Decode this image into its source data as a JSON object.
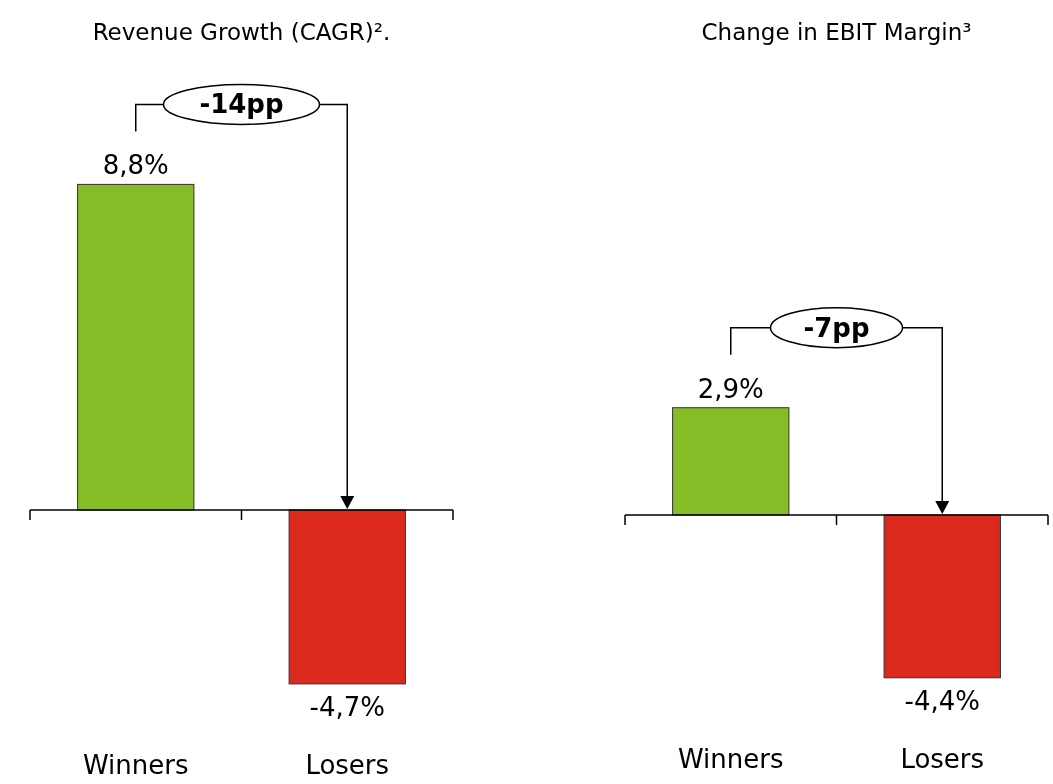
{
  "chart_data": [
    {
      "type": "bar",
      "title": "Revenue Growth (CAGR)².",
      "categories": [
        "Winners",
        "Losers"
      ],
      "values": [
        8.8,
        -4.7
      ],
      "colors": [
        "#86bc25",
        "#dc291e"
      ],
      "value_labels": [
        "8,8%",
        "-4,7%"
      ],
      "annotations": [
        "-14pp"
      ]
    },
    {
      "type": "bar",
      "title": "Change in EBIT Margin³",
      "categories": [
        "Winners",
        "Losers"
      ],
      "values": [
        2.9,
        -4.4
      ],
      "colors": [
        "#86bc25",
        "#dc291e"
      ],
      "value_labels": [
        "2,9%",
        "-4,4%"
      ],
      "annotations": [
        "-7pp"
      ]
    }
  ]
}
